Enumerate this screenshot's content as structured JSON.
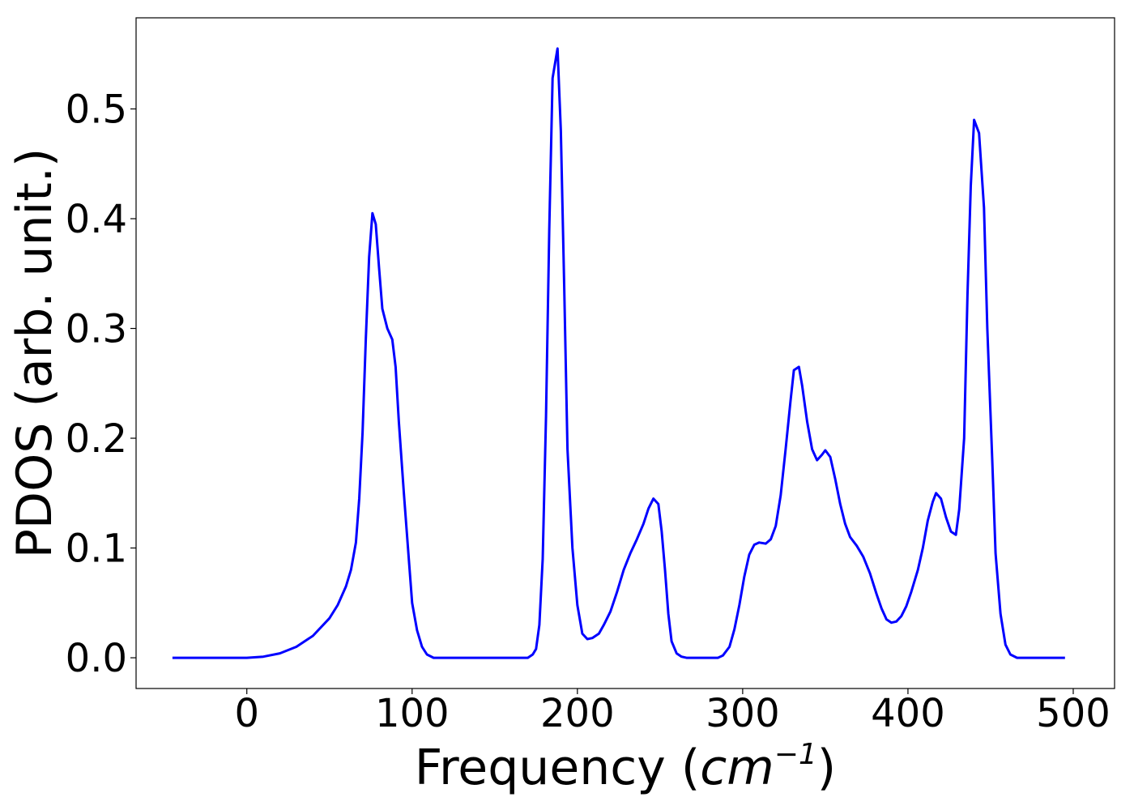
{
  "chart_data": {
    "type": "line",
    "xlabel": "Frequency (cm⁻¹)",
    "xlabel_parts": {
      "prefix": "Frequency (",
      "unit": "cm",
      "exponent": "−1",
      "suffix": ")"
    },
    "ylabel": "PDOS (arb. unit.)",
    "xlim": [
      -67,
      525
    ],
    "ylim": [
      -0.028,
      0.583
    ],
    "x_ticks": [
      0,
      100,
      200,
      300,
      400,
      500
    ],
    "x_tick_labels": [
      "0",
      "100",
      "200",
      "300",
      "400",
      "500"
    ],
    "y_ticks": [
      0.0,
      0.1,
      0.2,
      0.3,
      0.4,
      0.5
    ],
    "y_tick_labels": [
      "0.0",
      "0.1",
      "0.2",
      "0.3",
      "0.4",
      "0.5"
    ],
    "grid": false,
    "series": [
      {
        "color": "#0000ff",
        "points": [
          [
            -45,
            0.0
          ],
          [
            0,
            0.0
          ],
          [
            10,
            0.001
          ],
          [
            20,
            0.004
          ],
          [
            30,
            0.01
          ],
          [
            40,
            0.02
          ],
          [
            50,
            0.036
          ],
          [
            55,
            0.048
          ],
          [
            60,
            0.065
          ],
          [
            63,
            0.08
          ],
          [
            66,
            0.105
          ],
          [
            68,
            0.145
          ],
          [
            70,
            0.205
          ],
          [
            72,
            0.29
          ],
          [
            74,
            0.365
          ],
          [
            76,
            0.405
          ],
          [
            78,
            0.395
          ],
          [
            80,
            0.355
          ],
          [
            82,
            0.318
          ],
          [
            85,
            0.3
          ],
          [
            88,
            0.29
          ],
          [
            90,
            0.265
          ],
          [
            92,
            0.215
          ],
          [
            95,
            0.15
          ],
          [
            98,
            0.09
          ],
          [
            100,
            0.05
          ],
          [
            103,
            0.025
          ],
          [
            106,
            0.01
          ],
          [
            109,
            0.003
          ],
          [
            113,
            0.0
          ],
          [
            170,
            0.0
          ],
          [
            173,
            0.003
          ],
          [
            175,
            0.008
          ],
          [
            177,
            0.03
          ],
          [
            179,
            0.09
          ],
          [
            181,
            0.22
          ],
          [
            183,
            0.39
          ],
          [
            185,
            0.528
          ],
          [
            188,
            0.555
          ],
          [
            190,
            0.48
          ],
          [
            192,
            0.34
          ],
          [
            194,
            0.19
          ],
          [
            197,
            0.1
          ],
          [
            200,
            0.048
          ],
          [
            203,
            0.022
          ],
          [
            206,
            0.017
          ],
          [
            209,
            0.018
          ],
          [
            213,
            0.022
          ],
          [
            216,
            0.03
          ],
          [
            220,
            0.042
          ],
          [
            224,
            0.06
          ],
          [
            228,
            0.08
          ],
          [
            232,
            0.095
          ],
          [
            236,
            0.108
          ],
          [
            240,
            0.122
          ],
          [
            243,
            0.136
          ],
          [
            246,
            0.145
          ],
          [
            249,
            0.14
          ],
          [
            251,
            0.115
          ],
          [
            253,
            0.08
          ],
          [
            255,
            0.04
          ],
          [
            257,
            0.015
          ],
          [
            260,
            0.004
          ],
          [
            263,
            0.001
          ],
          [
            266,
            0.0
          ],
          [
            285,
            0.0
          ],
          [
            288,
            0.002
          ],
          [
            292,
            0.01
          ],
          [
            295,
            0.026
          ],
          [
            298,
            0.048
          ],
          [
            301,
            0.074
          ],
          [
            304,
            0.094
          ],
          [
            307,
            0.103
          ],
          [
            310,
            0.105
          ],
          [
            314,
            0.104
          ],
          [
            317,
            0.108
          ],
          [
            320,
            0.12
          ],
          [
            323,
            0.148
          ],
          [
            326,
            0.19
          ],
          [
            329,
            0.235
          ],
          [
            331,
            0.262
          ],
          [
            334,
            0.265
          ],
          [
            336,
            0.248
          ],
          [
            339,
            0.215
          ],
          [
            342,
            0.19
          ],
          [
            345,
            0.18
          ],
          [
            348,
            0.185
          ],
          [
            350,
            0.189
          ],
          [
            353,
            0.183
          ],
          [
            356,
            0.163
          ],
          [
            359,
            0.14
          ],
          [
            362,
            0.122
          ],
          [
            365,
            0.11
          ],
          [
            369,
            0.102
          ],
          [
            373,
            0.092
          ],
          [
            377,
            0.077
          ],
          [
            381,
            0.058
          ],
          [
            384,
            0.045
          ],
          [
            387,
            0.035
          ],
          [
            390,
            0.032
          ],
          [
            393,
            0.033
          ],
          [
            396,
            0.038
          ],
          [
            399,
            0.047
          ],
          [
            402,
            0.06
          ],
          [
            406,
            0.08
          ],
          [
            409,
            0.1
          ],
          [
            412,
            0.125
          ],
          [
            415,
            0.142
          ],
          [
            417,
            0.15
          ],
          [
            420,
            0.145
          ],
          [
            423,
            0.128
          ],
          [
            426,
            0.115
          ],
          [
            429,
            0.112
          ],
          [
            431,
            0.135
          ],
          [
            434,
            0.2
          ],
          [
            436,
            0.33
          ],
          [
            438,
            0.43
          ],
          [
            440,
            0.49
          ],
          [
            443,
            0.478
          ],
          [
            446,
            0.41
          ],
          [
            448,
            0.3
          ],
          [
            451,
            0.18
          ],
          [
            453,
            0.095
          ],
          [
            456,
            0.04
          ],
          [
            459,
            0.012
          ],
          [
            462,
            0.003
          ],
          [
            466,
            0.0
          ],
          [
            495,
            0.0
          ]
        ]
      }
    ]
  }
}
